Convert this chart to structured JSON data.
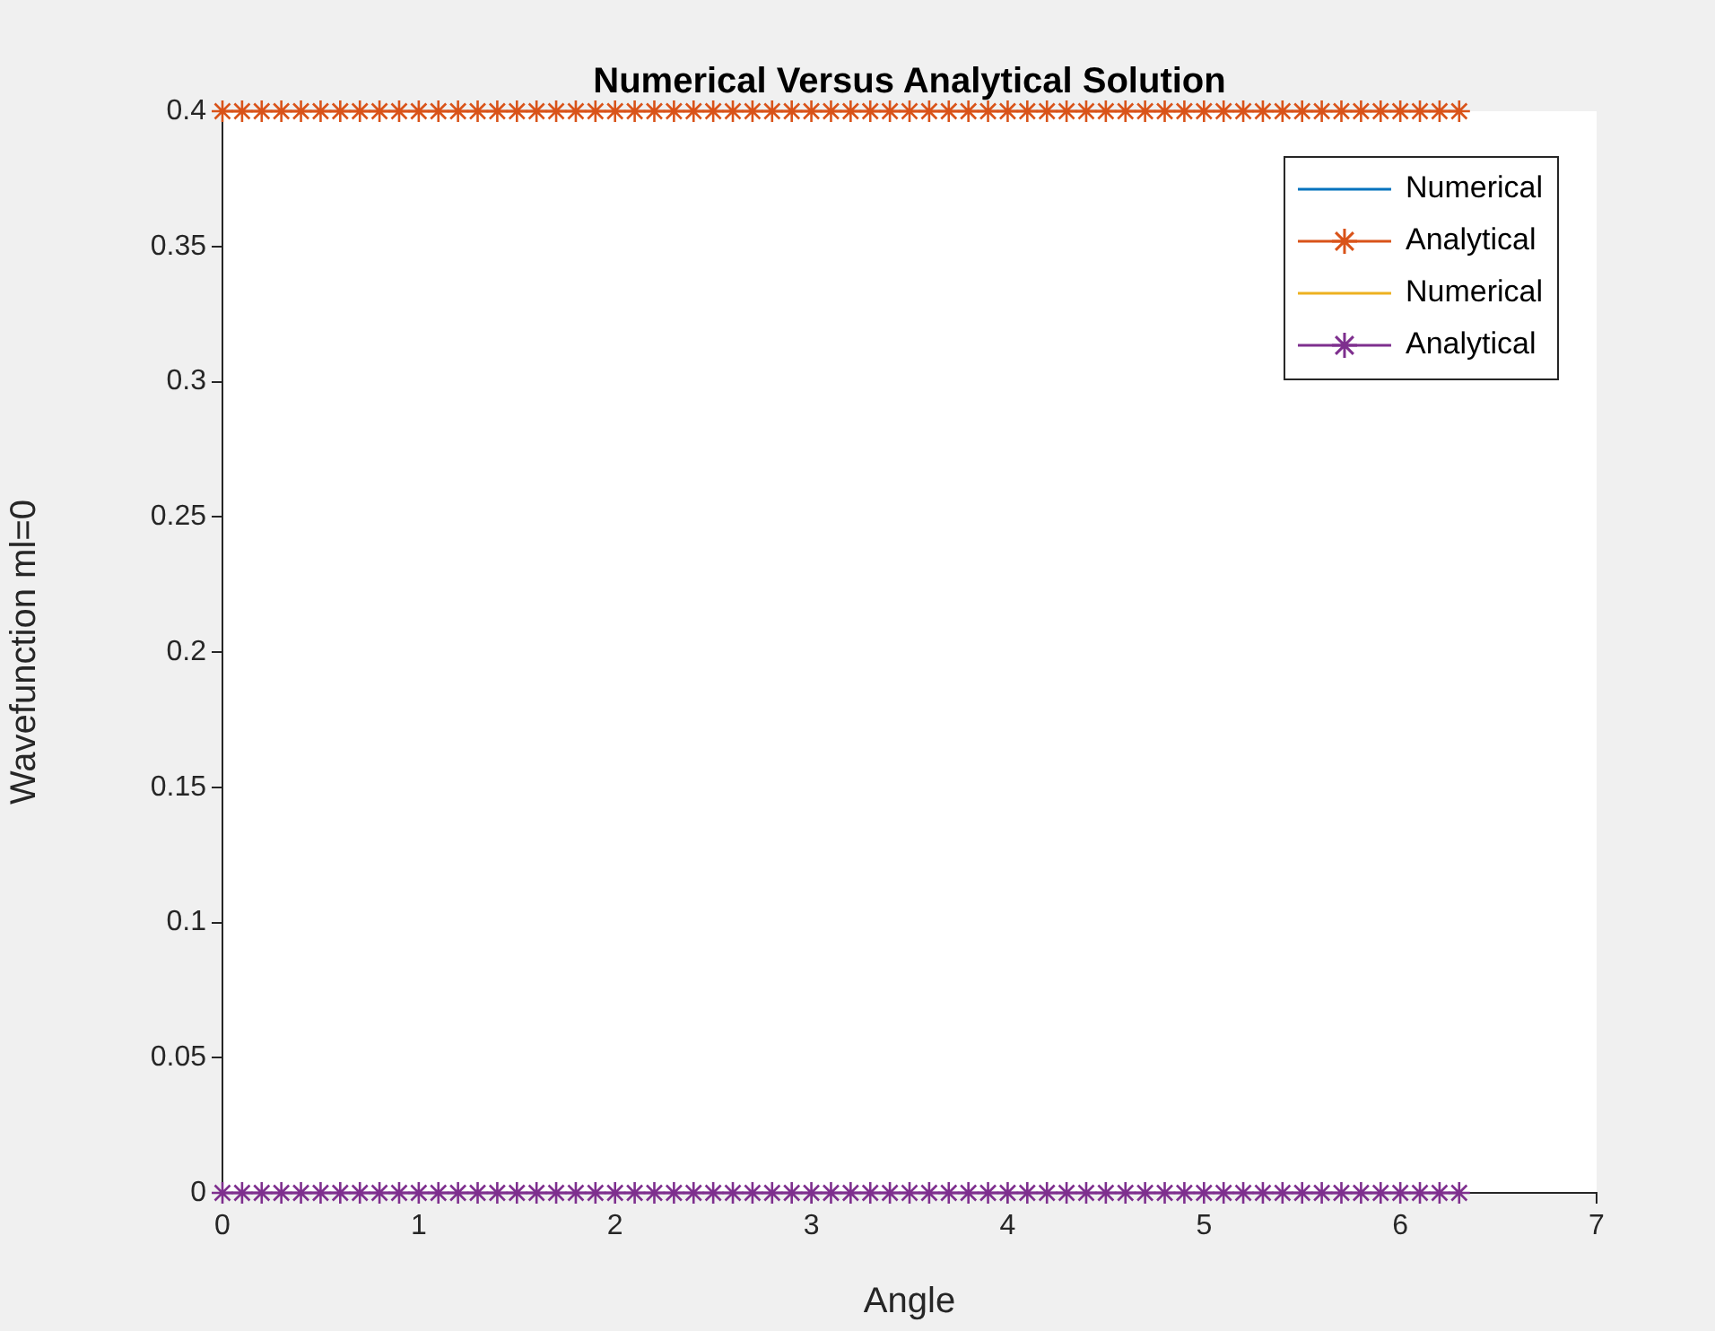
{
  "chart_data": {
    "type": "line",
    "title": "Numerical Versus Analytical Solution",
    "xlabel": "Angle",
    "ylabel": "Wavefunction ml=0",
    "x": [
      0,
      0.1,
      0.2,
      0.3,
      0.4,
      0.5,
      0.6,
      0.7,
      0.8,
      0.9,
      1,
      1.1,
      1.2,
      1.3,
      1.4,
      1.5,
      1.6,
      1.7,
      1.8,
      1.9,
      2,
      2.1,
      2.2,
      2.3,
      2.4,
      2.5,
      2.6,
      2.7,
      2.8,
      2.9,
      3,
      3.1,
      3.2,
      3.3,
      3.4,
      3.5,
      3.6,
      3.7,
      3.8,
      3.9,
      4,
      4.1,
      4.2,
      4.3,
      4.4,
      4.5,
      4.6,
      4.7,
      4.8,
      4.9,
      5,
      5.1,
      5.2,
      5.3,
      5.4,
      5.5,
      5.6,
      5.7,
      5.8,
      5.9,
      6,
      6.1,
      6.2,
      6.3
    ],
    "series": [
      {
        "name": "Numerical",
        "color": "#0072bd",
        "marker": "none",
        "values": [
          null,
          null,
          null,
          null,
          null,
          null,
          null,
          null,
          null,
          null,
          null,
          null,
          null,
          null,
          null,
          null,
          null,
          null,
          null,
          null,
          null,
          null,
          null,
          null,
          null,
          null,
          null,
          null,
          null,
          null,
          null,
          null,
          null,
          null,
          null,
          null,
          null,
          null,
          null,
          null,
          null,
          null,
          null,
          null,
          null,
          null,
          null,
          null,
          null,
          null,
          null,
          null,
          null,
          null,
          null,
          null,
          null,
          null,
          null,
          null,
          null,
          null,
          null,
          null
        ]
      },
      {
        "name": "Analytical",
        "color": "#d95319",
        "marker": "cross",
        "values": [
          0.4,
          0.4,
          0.4,
          0.4,
          0.4,
          0.4,
          0.4,
          0.4,
          0.4,
          0.4,
          0.4,
          0.4,
          0.4,
          0.4,
          0.4,
          0.4,
          0.4,
          0.4,
          0.4,
          0.4,
          0.4,
          0.4,
          0.4,
          0.4,
          0.4,
          0.4,
          0.4,
          0.4,
          0.4,
          0.4,
          0.4,
          0.4,
          0.4,
          0.4,
          0.4,
          0.4,
          0.4,
          0.4,
          0.4,
          0.4,
          0.4,
          0.4,
          0.4,
          0.4,
          0.4,
          0.4,
          0.4,
          0.4,
          0.4,
          0.4,
          0.4,
          0.4,
          0.4,
          0.4,
          0.4,
          0.4,
          0.4,
          0.4,
          0.4,
          0.4,
          0.4,
          0.4,
          0.4,
          0.4
        ]
      },
      {
        "name": "Numerical",
        "color": "#edb120",
        "marker": "none",
        "values": [
          null,
          null,
          null,
          null,
          null,
          null,
          null,
          null,
          null,
          null,
          null,
          null,
          null,
          null,
          null,
          null,
          null,
          null,
          null,
          null,
          null,
          null,
          null,
          null,
          null,
          null,
          null,
          null,
          null,
          null,
          null,
          null,
          null,
          null,
          null,
          null,
          null,
          null,
          null,
          null,
          null,
          null,
          null,
          null,
          null,
          null,
          null,
          null,
          null,
          null,
          null,
          null,
          null,
          null,
          null,
          null,
          null,
          null,
          null,
          null,
          null,
          null,
          null,
          null
        ]
      },
      {
        "name": "Analytical",
        "color": "#7e2f8e",
        "marker": "cross",
        "values": [
          0,
          0,
          0,
          0,
          0,
          0,
          0,
          0,
          0,
          0,
          0,
          0,
          0,
          0,
          0,
          0,
          0,
          0,
          0,
          0,
          0,
          0,
          0,
          0,
          0,
          0,
          0,
          0,
          0,
          0,
          0,
          0,
          0,
          0,
          0,
          0,
          0,
          0,
          0,
          0,
          0,
          0,
          0,
          0,
          0,
          0,
          0,
          0,
          0,
          0,
          0,
          0,
          0,
          0,
          0,
          0,
          0,
          0,
          0,
          0,
          0,
          0,
          0,
          0
        ]
      }
    ],
    "xlim": [
      0,
      7
    ],
    "xticks": [
      0,
      1,
      2,
      3,
      4,
      5,
      6,
      7
    ],
    "ylim": [
      0,
      0.4
    ],
    "yticks": [
      0,
      0.05,
      0.1,
      0.15,
      0.2,
      0.25,
      0.3,
      0.35,
      0.4
    ],
    "grid": false,
    "legend": "top right"
  }
}
